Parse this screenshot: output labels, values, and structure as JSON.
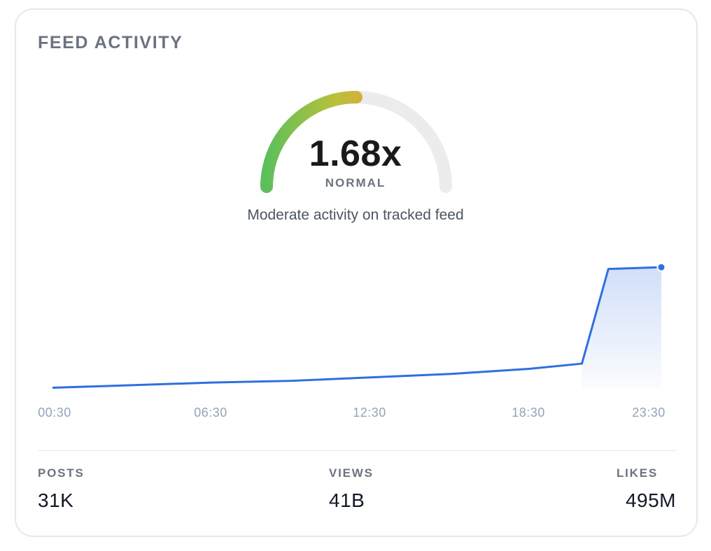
{
  "card": {
    "title": "FEED ACTIVITY"
  },
  "gauge": {
    "value_label": "1.68x",
    "value": 1.68,
    "fill_fraction": 0.5,
    "status": "NORMAL",
    "caption": "Moderate activity on tracked feed",
    "colors": {
      "track": "#ececec",
      "start": "#5cbf5c",
      "mid": "#b8c13a",
      "end": "#e8a23a"
    }
  },
  "chart_data": {
    "type": "area",
    "x": [
      "00:30",
      "02:30",
      "06:30",
      "09:30",
      "12:30",
      "15:30",
      "18:30",
      "20:30",
      "21:30",
      "23:30"
    ],
    "values": [
      1,
      2,
      4,
      5,
      7,
      9,
      12,
      15,
      70,
      71
    ],
    "tick_labels": [
      "00:30",
      "06:30",
      "12:30",
      "18:30",
      "23:30"
    ],
    "ylim": [
      0,
      80
    ],
    "grid": false,
    "line_color": "#2f6fdf",
    "fill_color": "#2f6fdf"
  },
  "stats": [
    {
      "label": "POSTS",
      "value": "31K"
    },
    {
      "label": "VIEWS",
      "value": "41B"
    },
    {
      "label": "LIKES",
      "value": "495M"
    }
  ]
}
